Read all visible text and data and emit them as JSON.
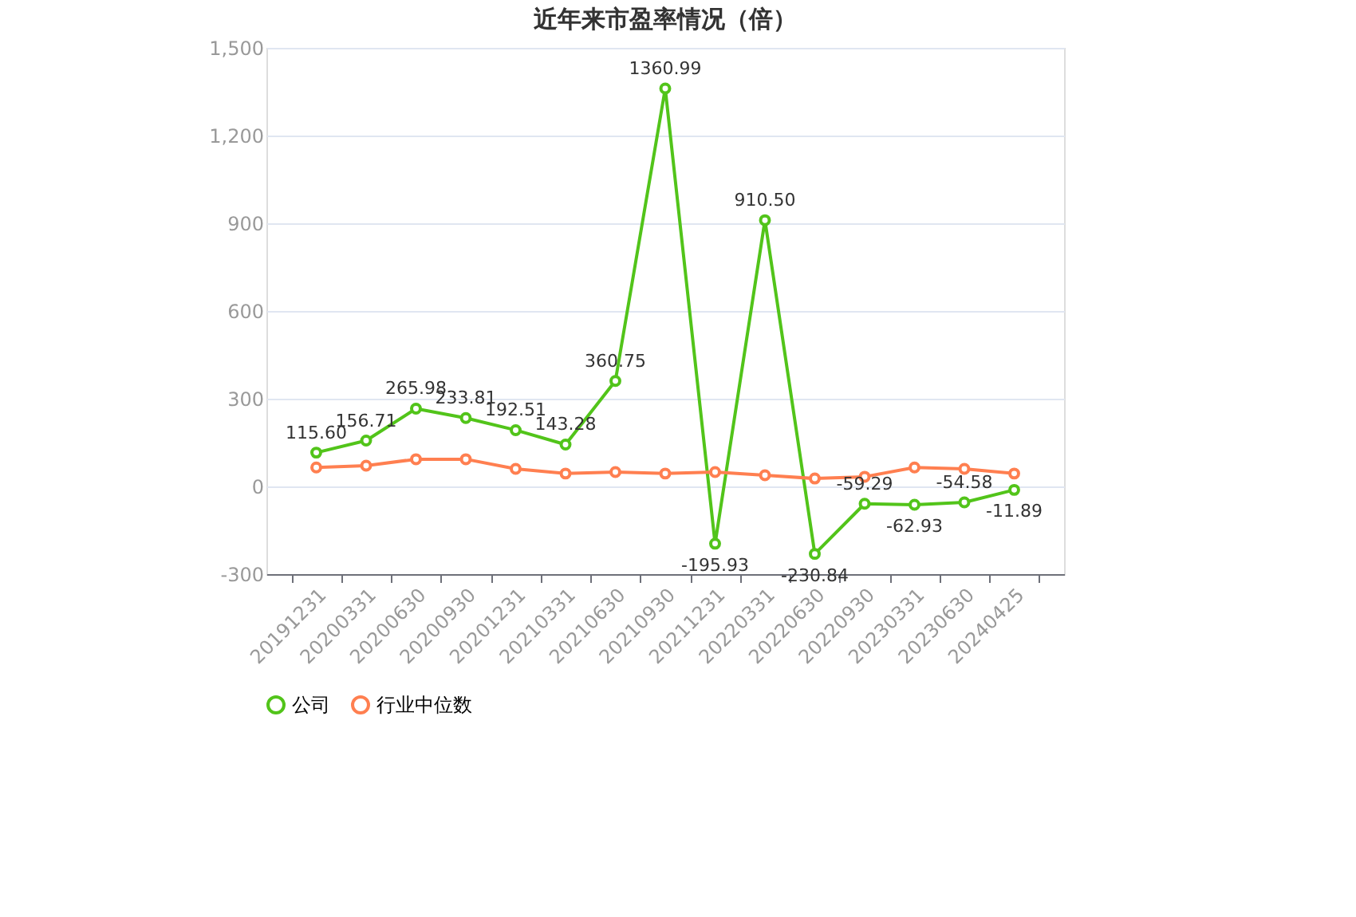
{
  "chart_data": {
    "type": "line",
    "title": "近年来市盈率情况（倍）",
    "categories": [
      "20191231",
      "20200331",
      "20200630",
      "20200930",
      "20201231",
      "20210331",
      "20210630",
      "20210930",
      "20211231",
      "20220331",
      "20220630",
      "20220930",
      "20230331",
      "20230630",
      "20240425"
    ],
    "series": [
      {
        "name": "公司",
        "color": "#52c41a",
        "values": [
          115.6,
          156.71,
          265.98,
          233.81,
          192.51,
          143.28,
          360.75,
          1360.99,
          -195.93,
          910.5,
          -230.84,
          -59.29,
          -62.93,
          -54.58,
          -11.89
        ],
        "value_labels": [
          "115.60",
          "156.71",
          "265.98",
          "233.81",
          "192.51",
          "143.28",
          "360.75",
          "1360.99",
          "-195.93",
          "910.50",
          "-230.84",
          "-59.29",
          "-62.93",
          "-54.58",
          "-11.89"
        ]
      },
      {
        "name": "行业中位数",
        "color": "#ff7f50",
        "values": [
          65,
          71,
          93,
          93,
          60,
          44,
          49,
          44,
          49,
          38,
          27,
          33,
          65,
          60,
          44
        ]
      }
    ],
    "ylim": [
      -300,
      1500
    ],
    "yticks": [
      {
        "value": -300,
        "label": "-300"
      },
      0,
      300,
      600,
      900,
      {
        "value": 1200,
        "label": "1,200"
      },
      {
        "value": 1500,
        "label": "1,500"
      }
    ],
    "grid": "y",
    "legend": "bottom",
    "marker": "circle",
    "line_style": "solid"
  }
}
